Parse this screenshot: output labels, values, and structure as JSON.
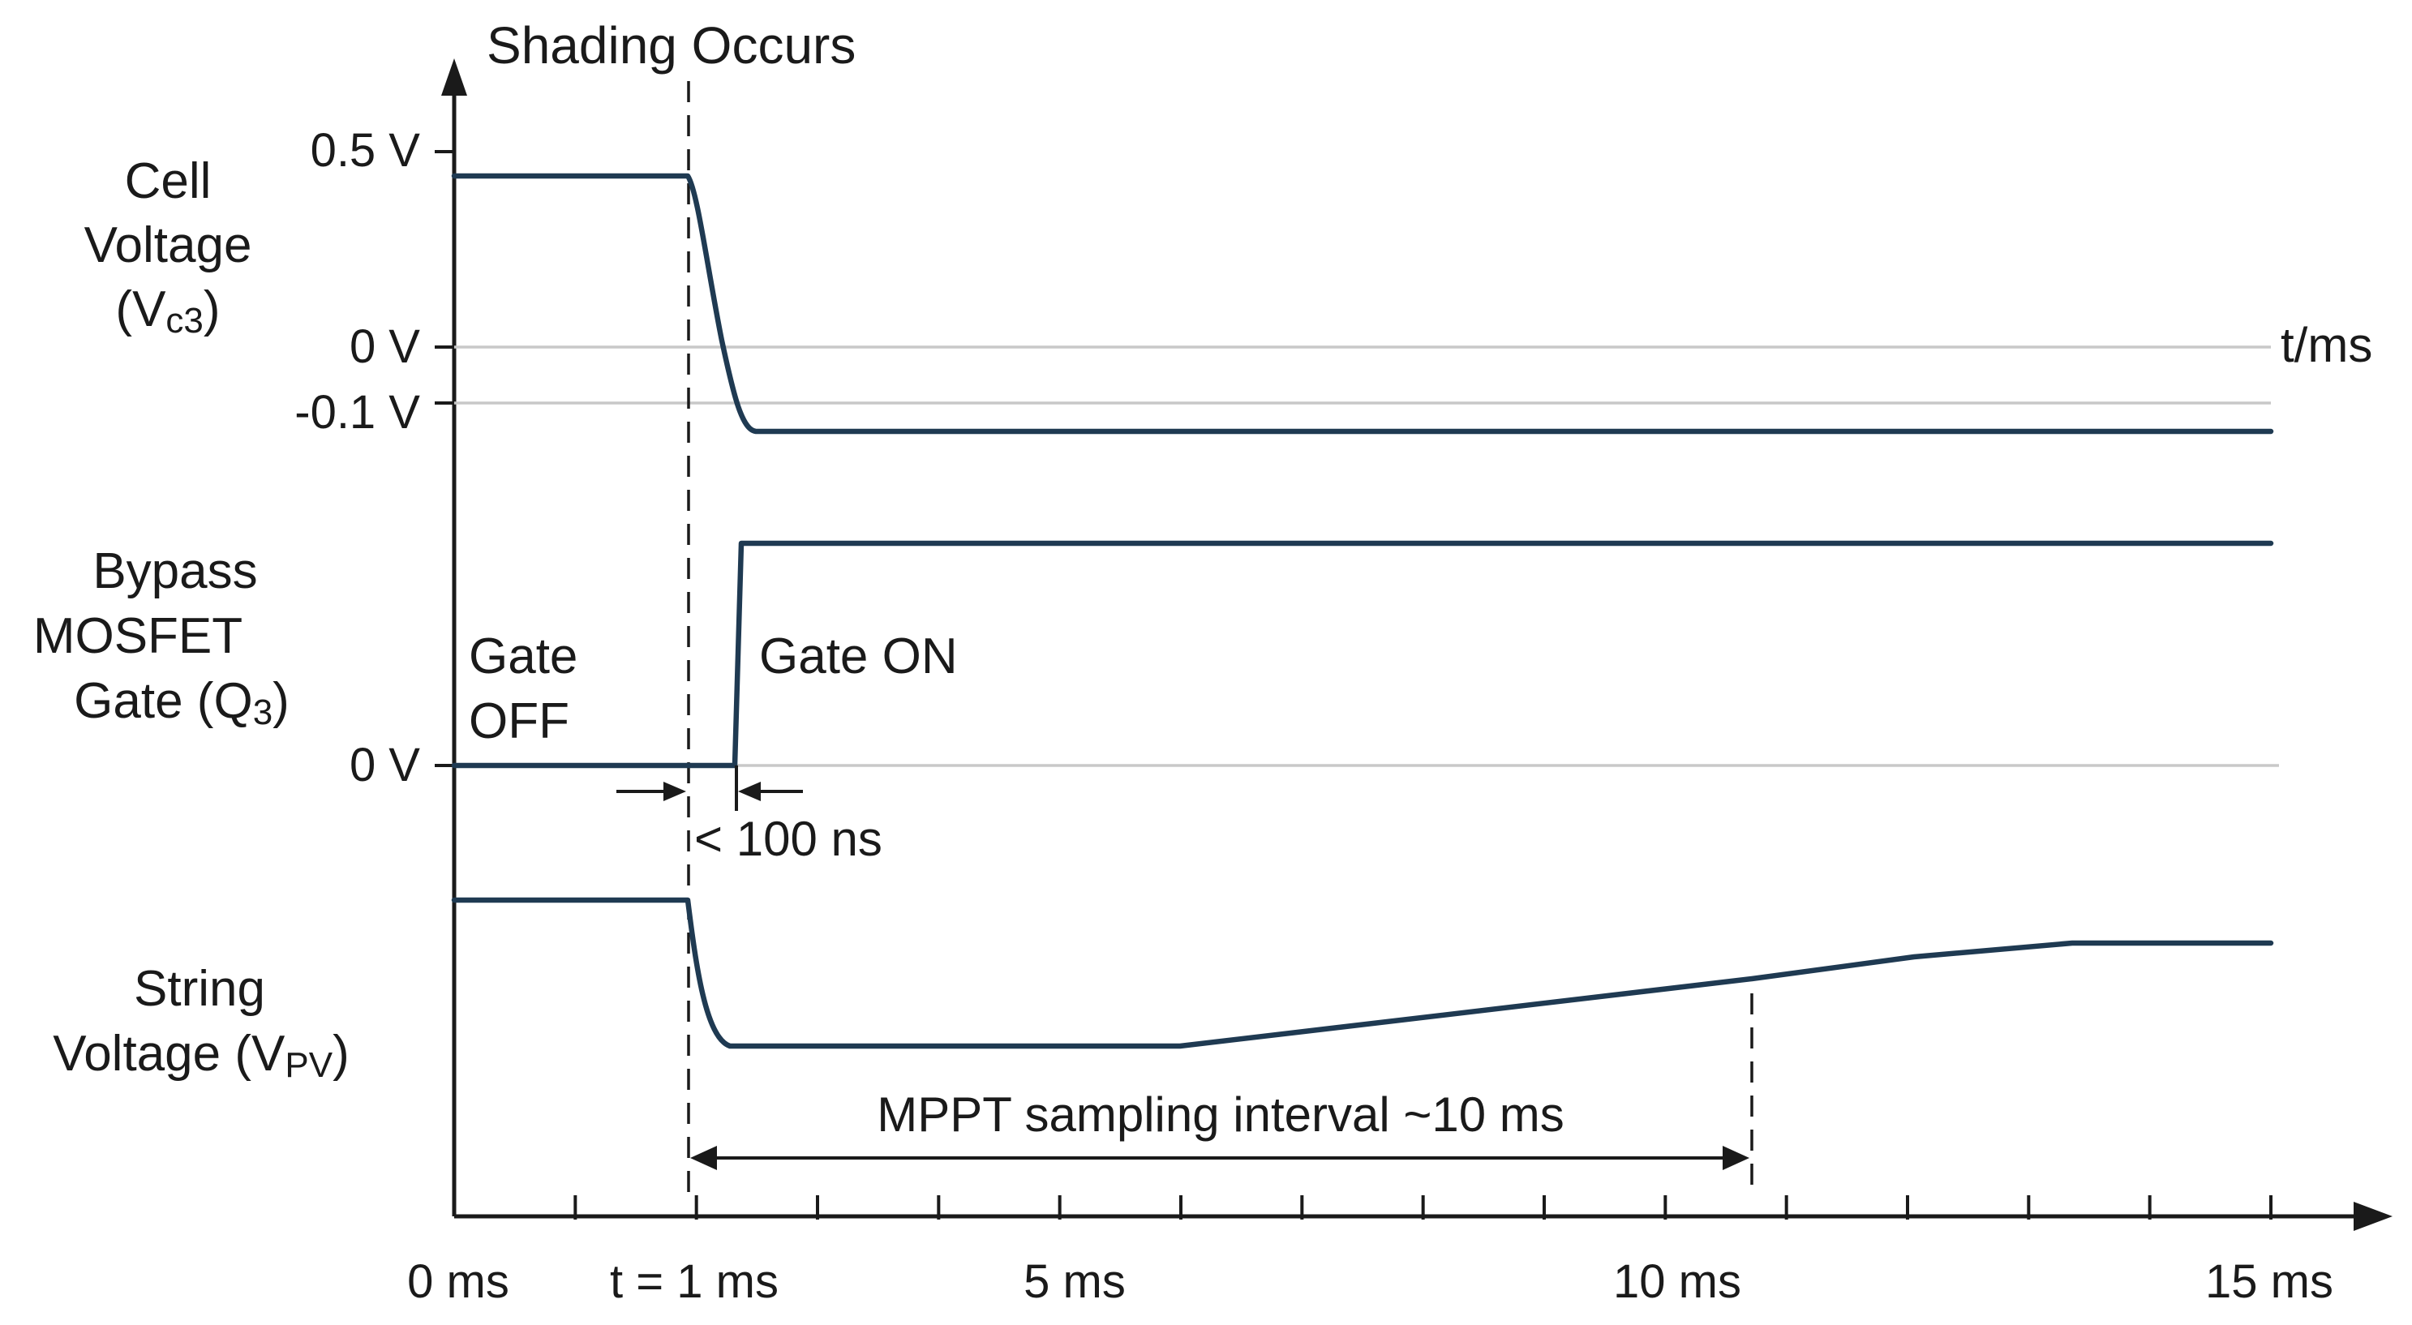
{
  "annotations": {
    "event": "Shading Occurs",
    "time_unit": "t/ms",
    "gate_off_line1": "Gate",
    "gate_off_line2": "OFF",
    "gate_on": "Gate ON",
    "switch_delay": "< 100 ns",
    "mppt_interval": "MPPT sampling interval ~10 ms"
  },
  "signals": {
    "cell_voltage": {
      "line1": "Cell",
      "line2": "Voltage",
      "symbol_open": "(V",
      "symbol_sub": "c3",
      "symbol_close": ")",
      "ticks": [
        "0.5 V",
        "0 V",
        "-0.1 V"
      ]
    },
    "gate": {
      "line1": "Bypass",
      "line2": "MOSFET",
      "line3_open": "Gate (Q",
      "line3_sub": "3",
      "line3_close": ")",
      "tick": "0 V"
    },
    "string_voltage": {
      "line1": "String",
      "line2_open": "Voltage (V",
      "line2_sub": "PV",
      "line2_close": ")"
    }
  },
  "time_axis": {
    "labels": [
      "0 ms",
      "t = 1 ms",
      "5 ms",
      "10 ms",
      "15 ms"
    ],
    "label_times_ms": [
      0,
      1,
      5,
      10,
      15
    ],
    "minor_tick_times_ms": [
      1,
      2,
      3,
      4,
      5,
      6,
      7,
      8,
      9,
      10,
      11,
      12,
      13,
      14,
      15
    ]
  },
  "colors": {
    "trace": "#1f3a52",
    "axis": "#1a1a1a",
    "reference_line": "#c8c8c8",
    "text": "#1a1a1a"
  }
}
